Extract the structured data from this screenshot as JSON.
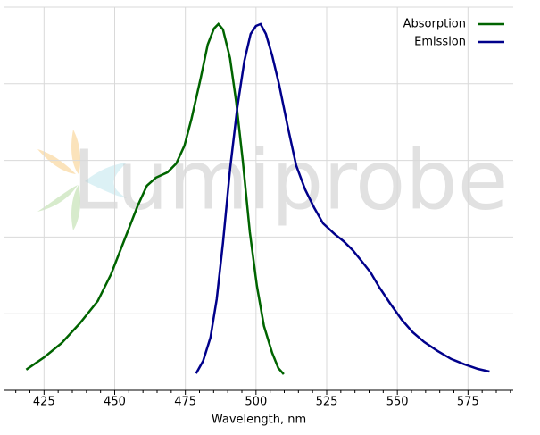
{
  "chart_data": {
    "type": "line",
    "x_label": "Wavelength, nm",
    "watermark": "Lumiprobe",
    "xlim": [
      411,
      591
    ],
    "xticks": [
      425,
      450,
      475,
      500,
      525,
      550,
      575
    ],
    "xminorticks": [
      415,
      420,
      430,
      435,
      440,
      445,
      455,
      460,
      465,
      470,
      480,
      485,
      490,
      495,
      505,
      510,
      515,
      520,
      530,
      535,
      540,
      545,
      555,
      560,
      565,
      570,
      580,
      585,
      590
    ],
    "ylim": [
      0,
      1
    ],
    "yticks": [
      0.2,
      0.4,
      0.6,
      0.8,
      1.0
    ],
    "ytick_labels": false,
    "grid": true,
    "legend": "upper right",
    "series": [
      {
        "name": "Absorption",
        "color": "#006400",
        "x": [
          418.7,
          425,
          431.3,
          437.7,
          444,
          448.7,
          453.5,
          458.2,
          461.4,
          464.6,
          468.7,
          471.8,
          474.7,
          477.2,
          480.4,
          482.9,
          485.1,
          486.7,
          488.3,
          490.8,
          493.0,
          495.3,
          497.8,
          500.3,
          502.8,
          505.7,
          507.9,
          509.8
        ],
        "values": [
          0.054,
          0.086,
          0.124,
          0.175,
          0.233,
          0.303,
          0.394,
          0.483,
          0.534,
          0.555,
          0.569,
          0.592,
          0.639,
          0.709,
          0.814,
          0.902,
          0.944,
          0.956,
          0.942,
          0.867,
          0.751,
          0.599,
          0.413,
          0.273,
          0.168,
          0.098,
          0.058,
          0.042
        ]
      },
      {
        "name": "Emission",
        "color": "#00008b",
        "x": [
          478.8,
          481.3,
          483.9,
          486.1,
          488.3,
          490.8,
          493.4,
          495.9,
          498.1,
          500,
          501.6,
          503.5,
          505.7,
          508.2,
          511.1,
          514.2,
          517.4,
          520.6,
          523.7,
          527.8,
          531.0,
          534.2,
          537.3,
          540.5,
          543.7,
          547.5,
          551.6,
          555.4,
          559.5,
          564.2,
          569.0,
          573.7,
          578.5,
          582.6
        ],
        "values": [
          0.044,
          0.077,
          0.138,
          0.238,
          0.385,
          0.576,
          0.739,
          0.86,
          0.93,
          0.951,
          0.956,
          0.93,
          0.874,
          0.797,
          0.692,
          0.587,
          0.524,
          0.476,
          0.436,
          0.408,
          0.389,
          0.366,
          0.338,
          0.308,
          0.268,
          0.226,
          0.184,
          0.152,
          0.126,
          0.103,
          0.082,
          0.068,
          0.056,
          0.049
        ]
      }
    ]
  }
}
